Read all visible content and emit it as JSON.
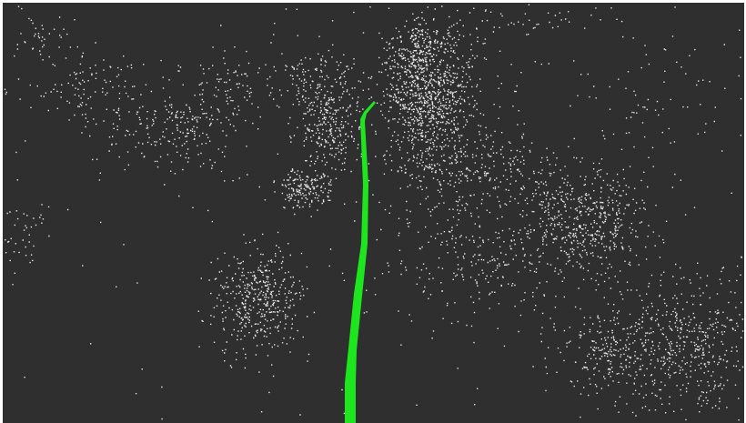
{
  "viewer": {
    "background_color": "#2f2f2f",
    "frame_color": "#ffffff",
    "point_color": "#ffffff",
    "trajectory_color": "#1ee61e"
  }
}
